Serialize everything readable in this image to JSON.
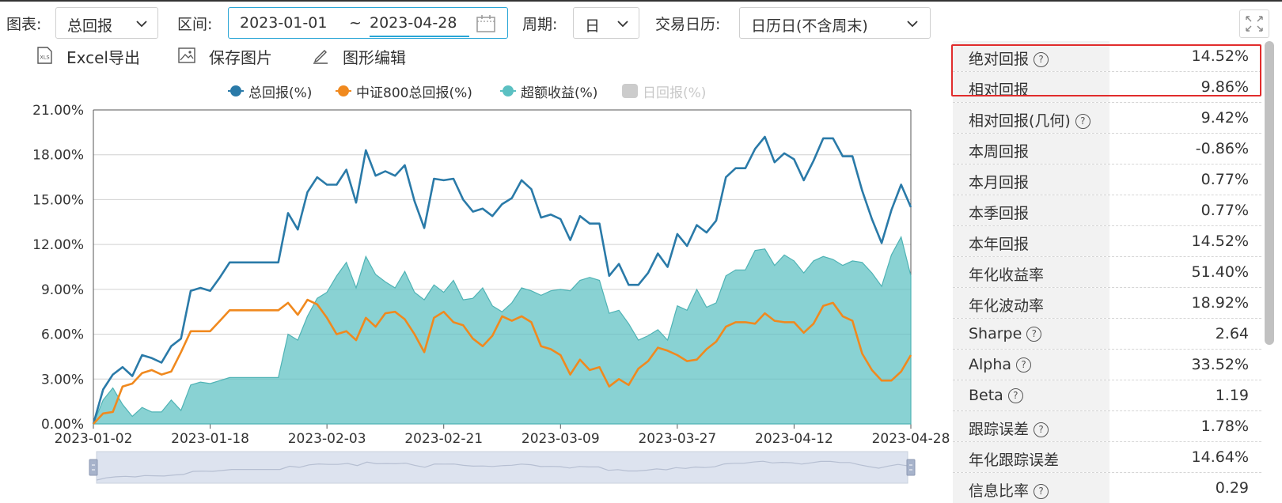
{
  "toolbar": {
    "chart_label": "图表:",
    "chart_value": "总回报",
    "range_label": "区间:",
    "date_start": "2023-01-01",
    "date_sep": "~",
    "date_end": "2023-04-28",
    "period_label": "周期:",
    "period_value": "日",
    "calendar_label": "交易日历:",
    "calendar_value": "日历日(不含周末)"
  },
  "actions": {
    "excel_export": "Excel导出",
    "save_image": "保存图片",
    "edit_chart": "图形编辑",
    "excel_icon_text": "XLS"
  },
  "legend": [
    {
      "label": "总回报(%)",
      "color": "#2a7aa8",
      "active": true
    },
    {
      "label": "中证800总回报(%)",
      "color": "#f0891e",
      "active": true
    },
    {
      "label": "超额收益(%)",
      "color": "#5bc0c2",
      "active": true
    },
    {
      "label": "日回报(%)",
      "color": "#cccccc",
      "active": false
    }
  ],
  "stats": [
    {
      "name": "绝对回报",
      "help": true,
      "value": "14.52%"
    },
    {
      "name": "相对回报",
      "help": false,
      "value": "9.86%"
    },
    {
      "name": "相对回报(几何)",
      "help": true,
      "value": "9.42%"
    },
    {
      "name": "本周回报",
      "help": false,
      "value": "-0.86%"
    },
    {
      "name": "本月回报",
      "help": false,
      "value": "0.77%"
    },
    {
      "name": "本季回报",
      "help": false,
      "value": "0.77%"
    },
    {
      "name": "本年回报",
      "help": false,
      "value": "14.52%"
    },
    {
      "name": "年化收益率",
      "help": false,
      "value": "51.40%"
    },
    {
      "name": "年化波动率",
      "help": false,
      "value": "18.92%"
    },
    {
      "name": "Sharpe",
      "help": true,
      "value": "2.64"
    },
    {
      "name": "Alpha",
      "help": true,
      "value": "33.52%"
    },
    {
      "name": "Beta",
      "help": true,
      "value": "1.19"
    },
    {
      "name": "跟踪误差",
      "help": true,
      "value": "1.78%"
    },
    {
      "name": "年化跟踪误差",
      "help": false,
      "value": "14.64%"
    },
    {
      "name": "信息比率",
      "help": true,
      "value": "0.29"
    }
  ],
  "help_glyph": "?",
  "colors": {
    "total": "#2a7aa8",
    "csi800": "#f0891e",
    "excess": "#5bc0c2",
    "highlight": "#e12c2c"
  },
  "chart_data": {
    "type": "line",
    "ylim": [
      0,
      21
    ],
    "yticks": [
      "0.00%",
      "3.00%",
      "6.00%",
      "9.00%",
      "12.00%",
      "15.00%",
      "18.00%",
      "21.00%"
    ],
    "xticks": [
      "2023-01-02",
      "2023-01-18",
      "2023-02-03",
      "2023-02-21",
      "2023-03-09",
      "2023-03-27",
      "2023-04-12",
      "2023-04-28"
    ],
    "series": [
      {
        "name": "总回报(%)",
        "style": "line",
        "color": "#2a7aa8",
        "values": [
          0.0,
          2.3,
          3.3,
          3.8,
          3.2,
          4.6,
          4.4,
          4.1,
          5.2,
          5.7,
          8.9,
          9.1,
          8.9,
          9.8,
          10.8,
          10.8,
          10.8,
          10.8,
          10.8,
          10.8,
          14.1,
          13.0,
          15.5,
          16.5,
          16.0,
          16.0,
          17.0,
          14.8,
          18.3,
          16.6,
          16.9,
          16.6,
          17.3,
          14.9,
          13.1,
          16.4,
          16.3,
          16.4,
          15.0,
          14.2,
          14.4,
          13.9,
          14.7,
          15.1,
          16.3,
          15.7,
          13.8,
          14.0,
          13.7,
          12.3,
          13.9,
          13.4,
          13.4,
          9.9,
          10.7,
          9.3,
          9.3,
          10.1,
          11.4,
          10.5,
          12.7,
          11.9,
          13.3,
          12.8,
          13.6,
          16.5,
          17.1,
          17.1,
          18.4,
          19.2,
          17.5,
          18.1,
          17.7,
          16.3,
          17.6,
          19.1,
          19.1,
          17.9,
          17.9,
          15.6,
          13.7,
          12.1,
          14.3,
          16.0,
          14.5
        ]
      },
      {
        "name": "中证800总回报(%)",
        "style": "line",
        "color": "#f0891e",
        "values": [
          0.0,
          0.7,
          0.8,
          2.5,
          2.7,
          3.4,
          3.6,
          3.3,
          3.5,
          4.8,
          6.2,
          6.2,
          6.2,
          6.9,
          7.6,
          7.6,
          7.6,
          7.6,
          7.6,
          7.6,
          8.1,
          7.3,
          8.3,
          8.0,
          7.1,
          6.0,
          6.2,
          5.6,
          7.1,
          6.5,
          7.4,
          7.5,
          7.0,
          6.0,
          4.8,
          7.1,
          7.5,
          6.8,
          6.6,
          5.7,
          5.2,
          5.9,
          7.2,
          6.9,
          7.2,
          6.8,
          5.2,
          5.0,
          4.6,
          3.3,
          4.3,
          3.6,
          3.8,
          2.5,
          3.0,
          2.6,
          3.7,
          4.2,
          5.1,
          4.9,
          4.6,
          4.2,
          4.3,
          5.0,
          5.5,
          6.5,
          6.8,
          6.8,
          6.7,
          7.4,
          6.9,
          6.8,
          6.8,
          6.1,
          6.7,
          7.9,
          8.1,
          7.2,
          6.9,
          4.7,
          3.6,
          2.9,
          2.9,
          3.5,
          4.6
        ]
      },
      {
        "name": "超额收益(%)",
        "style": "area",
        "color": "#5bc0c2",
        "values": [
          0.0,
          1.6,
          2.4,
          1.3,
          0.5,
          1.1,
          0.8,
          0.8,
          1.6,
          0.9,
          2.6,
          2.8,
          2.7,
          2.9,
          3.1,
          3.1,
          3.1,
          3.1,
          3.1,
          3.1,
          6.0,
          5.6,
          7.2,
          8.4,
          8.8,
          9.9,
          10.8,
          9.1,
          11.2,
          10.0,
          9.5,
          9.1,
          10.2,
          8.8,
          8.3,
          9.3,
          8.8,
          9.6,
          8.3,
          8.4,
          9.1,
          7.9,
          7.5,
          8.1,
          9.1,
          8.9,
          8.6,
          8.9,
          9.0,
          8.9,
          9.6,
          9.8,
          9.6,
          7.4,
          7.6,
          6.7,
          5.6,
          5.9,
          6.3,
          5.6,
          7.9,
          7.6,
          9.0,
          7.8,
          8.1,
          9.9,
          10.3,
          10.3,
          11.6,
          11.7,
          10.6,
          11.3,
          10.9,
          10.1,
          10.9,
          11.2,
          11.0,
          10.6,
          10.9,
          10.8,
          10.1,
          9.2,
          11.3,
          12.5,
          9.9
        ]
      }
    ]
  }
}
